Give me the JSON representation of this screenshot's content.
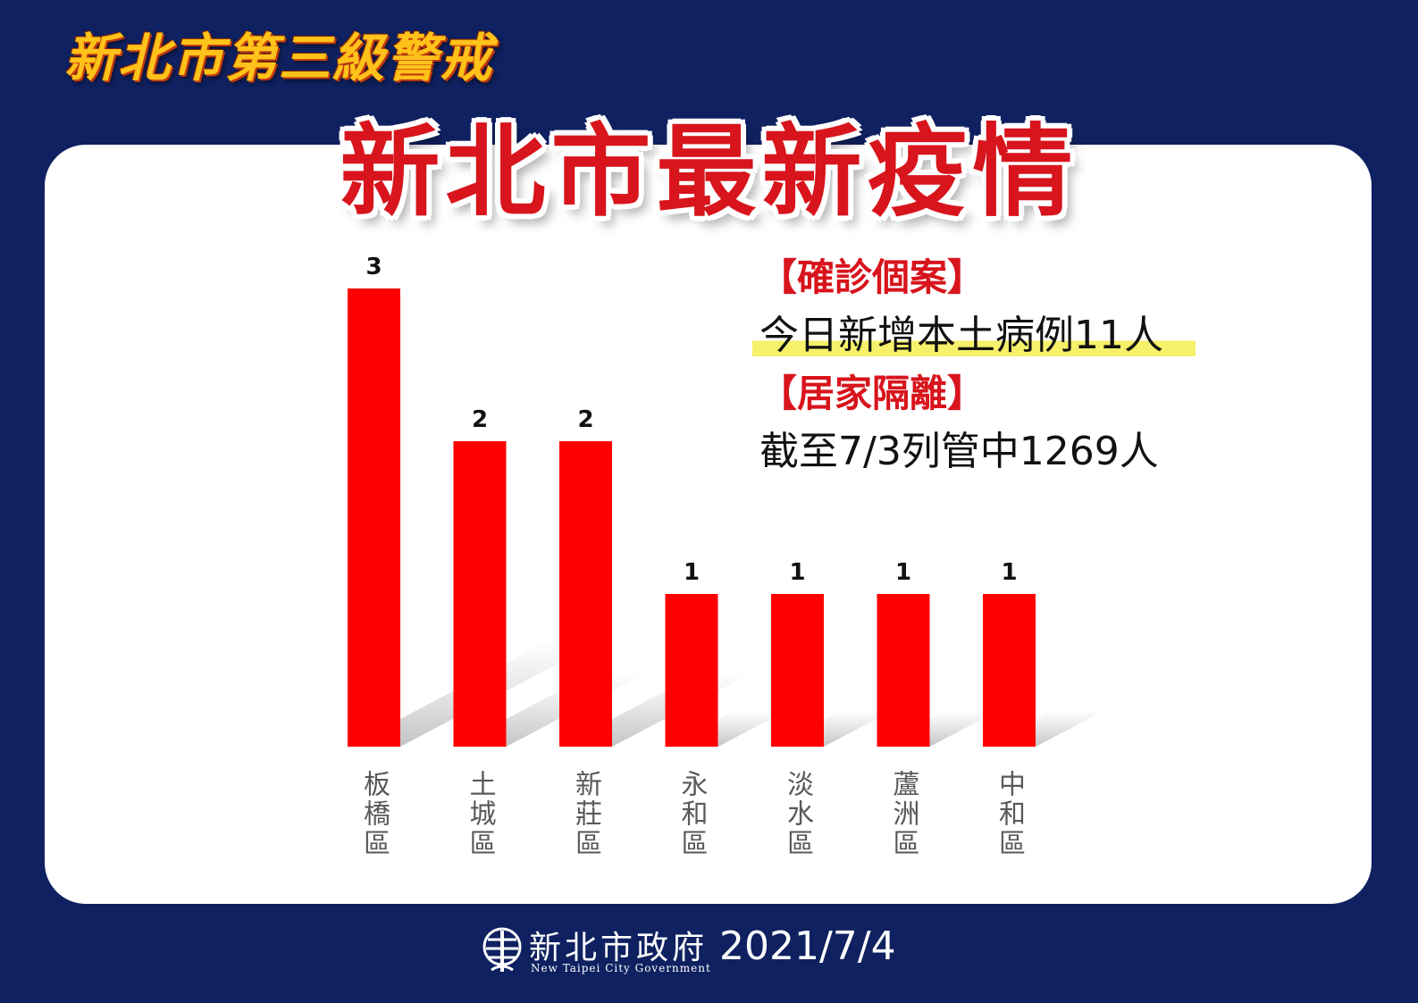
{
  "header": {
    "banner": "新北市第三級警戒",
    "title": "新北市最新疫情"
  },
  "info": {
    "confirmed_heading": "【確診個案】",
    "confirmed_text": "今日新增本土病例11人",
    "quarantine_heading": "【居家隔離】",
    "quarantine_text": "截至7/3列管中1269人"
  },
  "footer": {
    "org_name": "新北市政府",
    "org_name_en": "New Taipei City Government",
    "date": "2021/7/4"
  },
  "colors": {
    "background": "#0f2160",
    "bar": "#ff0000",
    "title_red": "#d8141c",
    "banner_gold": "#ffc21a",
    "highlight": "#f6f06a"
  },
  "chart_data": {
    "type": "bar",
    "categories": [
      "板橋區",
      "土城區",
      "新莊區",
      "永和區",
      "淡水區",
      "蘆洲區",
      "中和區"
    ],
    "values": [
      3,
      2,
      2,
      1,
      1,
      1,
      1
    ],
    "title": "",
    "xlabel": "",
    "ylabel": "",
    "ylim": [
      0,
      3
    ],
    "data_labels": true,
    "grid": false,
    "legend": "none"
  }
}
